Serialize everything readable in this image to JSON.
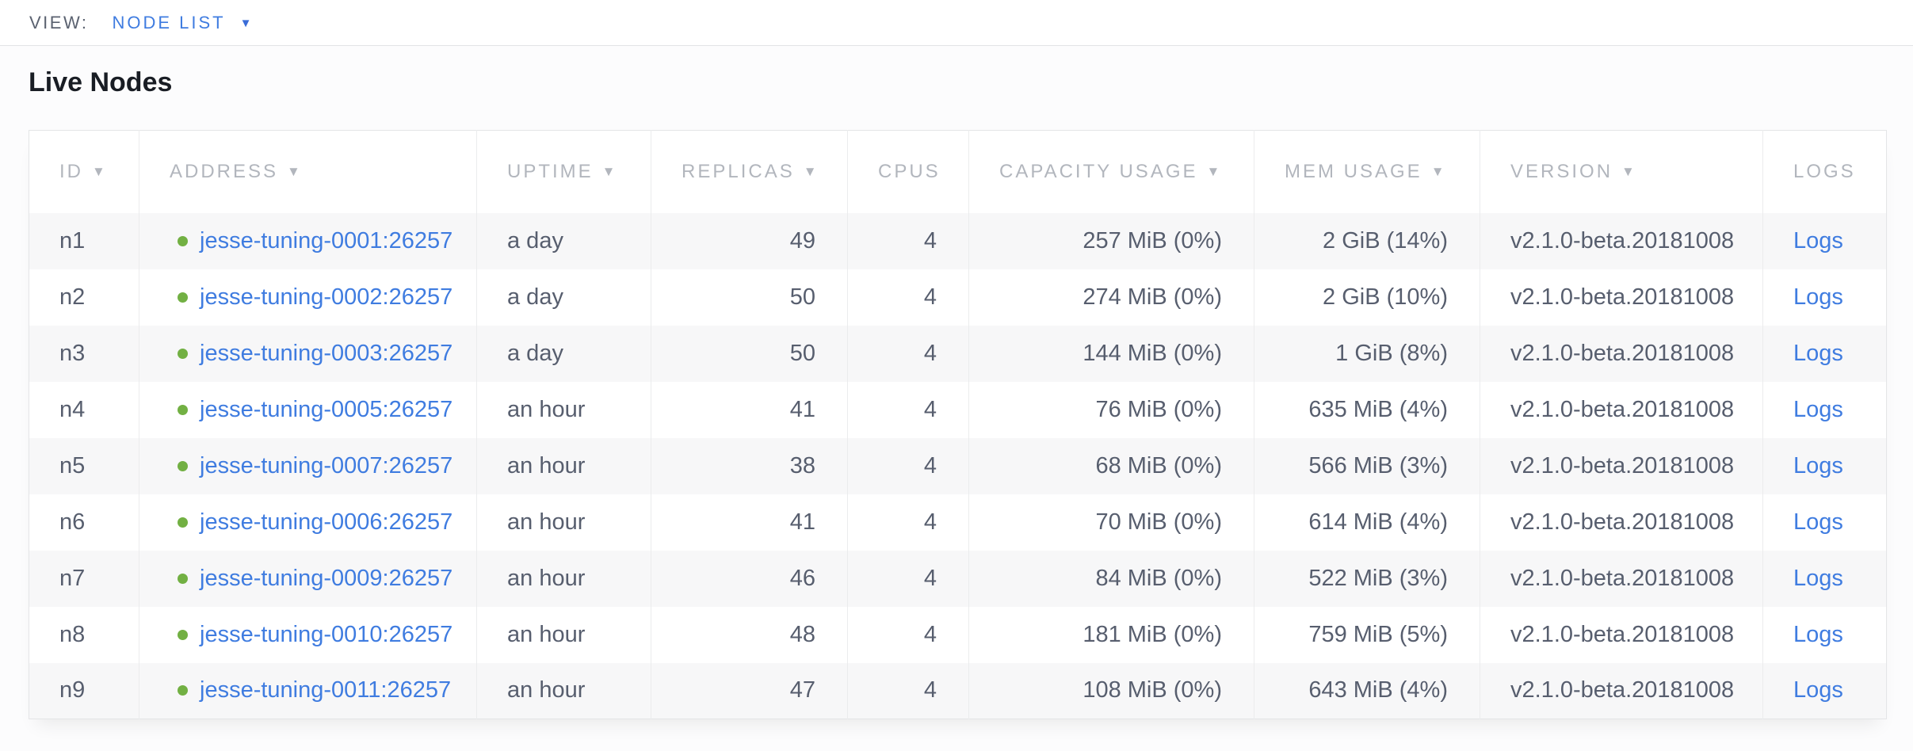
{
  "view_bar": {
    "label": "VIEW:",
    "selected_view": "NODE LIST",
    "caret_icon": "▼"
  },
  "page": {
    "title": "Live Nodes"
  },
  "table": {
    "sort_icon": "▼",
    "columns": [
      {
        "key": "id",
        "label": "ID",
        "sortable": true,
        "align": "left"
      },
      {
        "key": "address",
        "label": "ADDRESS",
        "sortable": true,
        "align": "left"
      },
      {
        "key": "uptime",
        "label": "UPTIME",
        "sortable": true,
        "align": "left"
      },
      {
        "key": "replicas",
        "label": "REPLICAS",
        "sortable": true,
        "align": "right"
      },
      {
        "key": "cpus",
        "label": "CPUS",
        "sortable": false,
        "align": "right"
      },
      {
        "key": "capacity",
        "label": "CAPACITY USAGE",
        "sortable": true,
        "align": "right"
      },
      {
        "key": "mem",
        "label": "MEM USAGE",
        "sortable": true,
        "align": "right"
      },
      {
        "key": "version",
        "label": "VERSION",
        "sortable": true,
        "align": "left"
      },
      {
        "key": "logs",
        "label": "LOGS",
        "sortable": false,
        "align": "left"
      }
    ],
    "rows": [
      {
        "id": "n1",
        "status": "healthy",
        "address": "jesse-tuning-0001:26257",
        "uptime": "a day",
        "replicas": "49",
        "cpus": "4",
        "capacity": "257 MiB (0%)",
        "mem": "2 GiB (14%)",
        "version": "v2.1.0-beta.20181008",
        "logs": "Logs"
      },
      {
        "id": "n2",
        "status": "healthy",
        "address": "jesse-tuning-0002:26257",
        "uptime": "a day",
        "replicas": "50",
        "cpus": "4",
        "capacity": "274 MiB (0%)",
        "mem": "2 GiB (10%)",
        "version": "v2.1.0-beta.20181008",
        "logs": "Logs"
      },
      {
        "id": "n3",
        "status": "healthy",
        "address": "jesse-tuning-0003:26257",
        "uptime": "a day",
        "replicas": "50",
        "cpus": "4",
        "capacity": "144 MiB (0%)",
        "mem": "1 GiB (8%)",
        "version": "v2.1.0-beta.20181008",
        "logs": "Logs"
      },
      {
        "id": "n4",
        "status": "healthy",
        "address": "jesse-tuning-0005:26257",
        "uptime": "an hour",
        "replicas": "41",
        "cpus": "4",
        "capacity": "76 MiB (0%)",
        "mem": "635 MiB (4%)",
        "version": "v2.1.0-beta.20181008",
        "logs": "Logs"
      },
      {
        "id": "n5",
        "status": "healthy",
        "address": "jesse-tuning-0007:26257",
        "uptime": "an hour",
        "replicas": "38",
        "cpus": "4",
        "capacity": "68 MiB (0%)",
        "mem": "566 MiB (3%)",
        "version": "v2.1.0-beta.20181008",
        "logs": "Logs"
      },
      {
        "id": "n6",
        "status": "healthy",
        "address": "jesse-tuning-0006:26257",
        "uptime": "an hour",
        "replicas": "41",
        "cpus": "4",
        "capacity": "70 MiB (0%)",
        "mem": "614 MiB (4%)",
        "version": "v2.1.0-beta.20181008",
        "logs": "Logs"
      },
      {
        "id": "n7",
        "status": "healthy",
        "address": "jesse-tuning-0009:26257",
        "uptime": "an hour",
        "replicas": "46",
        "cpus": "4",
        "capacity": "84 MiB (0%)",
        "mem": "522 MiB (3%)",
        "version": "v2.1.0-beta.20181008",
        "logs": "Logs"
      },
      {
        "id": "n8",
        "status": "healthy",
        "address": "jesse-tuning-0010:26257",
        "uptime": "an hour",
        "replicas": "48",
        "cpus": "4",
        "capacity": "181 MiB (0%)",
        "mem": "759 MiB (5%)",
        "version": "v2.1.0-beta.20181008",
        "logs": "Logs"
      },
      {
        "id": "n9",
        "status": "healthy",
        "address": "jesse-tuning-0011:26257",
        "uptime": "an hour",
        "replicas": "47",
        "cpus": "4",
        "capacity": "108 MiB (0%)",
        "mem": "643 MiB (4%)",
        "version": "v2.1.0-beta.20181008",
        "logs": "Logs"
      }
    ]
  },
  "colors": {
    "link": "#3f7ce0",
    "healthy_dot": "#72b043",
    "header_text": "#b2b6bd",
    "body_text": "#575e6e",
    "row_alt": "#f7f7f8"
  }
}
